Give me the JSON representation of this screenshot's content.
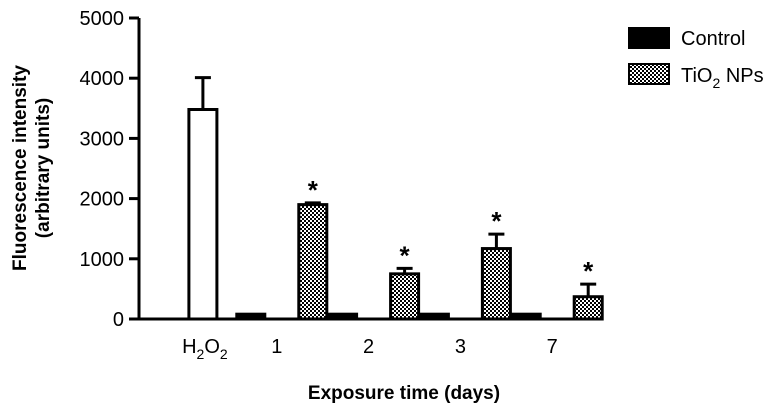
{
  "chart_data": {
    "type": "bar",
    "xlabel": "Exposure time (days)",
    "ylabel": "Fluorescence intensity",
    "ylabel_line2": "(arbitrary units)",
    "ylim": [
      0,
      5000
    ],
    "yticks": [
      0,
      1000,
      2000,
      3000,
      4000,
      5000
    ],
    "categories": [
      {
        "label": "H",
        "sub1": "2",
        "mid": "O",
        "sub2": "2"
      },
      {
        "label": "1"
      },
      {
        "label": "2"
      },
      {
        "label": "3"
      },
      {
        "label": "7"
      }
    ],
    "reference": {
      "category": 0,
      "value": 3480,
      "error": 530,
      "fill": "#ffffff"
    },
    "series": [
      {
        "name": "Control",
        "fill": "#000000",
        "values": [
          null,
          80,
          80,
          80,
          80
        ],
        "errors": [
          null,
          0,
          0,
          0,
          0
        ]
      },
      {
        "name": "TiO",
        "name_sub": "2",
        "name_suffix": " NPs",
        "fill": "pattern-checker",
        "values": [
          null,
          1900,
          750,
          1170,
          370
        ],
        "errors": [
          null,
          30,
          90,
          240,
          210
        ]
      }
    ],
    "significance": {
      "marker": "*",
      "categories": [
        1,
        2,
        3,
        4
      ]
    },
    "legend_position": "top-right"
  }
}
